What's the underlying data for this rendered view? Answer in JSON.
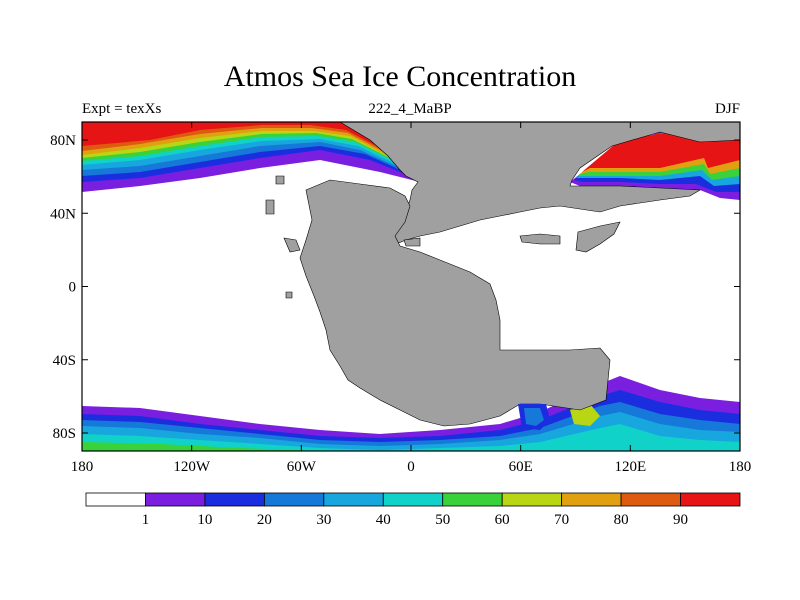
{
  "title": "Atmos Sea Ice Concentration",
  "subtitle_left": "Expt = texXs",
  "subtitle_center": "222_4_MaBP",
  "subtitle_right": "DJF",
  "x_ticks": [
    "180",
    "120W",
    "60W",
    "0",
    "60E",
    "120E",
    "180"
  ],
  "y_ticks": [
    "80N",
    "40N",
    "0",
    "40S",
    "80S"
  ],
  "colorbar": {
    "labels": [
      "1",
      "10",
      "20",
      "30",
      "40",
      "50",
      "60",
      "70",
      "80",
      "90"
    ],
    "colors": [
      "#ffffff",
      "#7a1fe0",
      "#1a2ee0",
      "#1678d8",
      "#17a6de",
      "#10d2c8",
      "#3ad23a",
      "#b8d614",
      "#e0a010",
      "#de5a10",
      "#e61414"
    ]
  },
  "colors": {
    "land": "#a0a0a0",
    "ocean": "#ffffff"
  }
}
